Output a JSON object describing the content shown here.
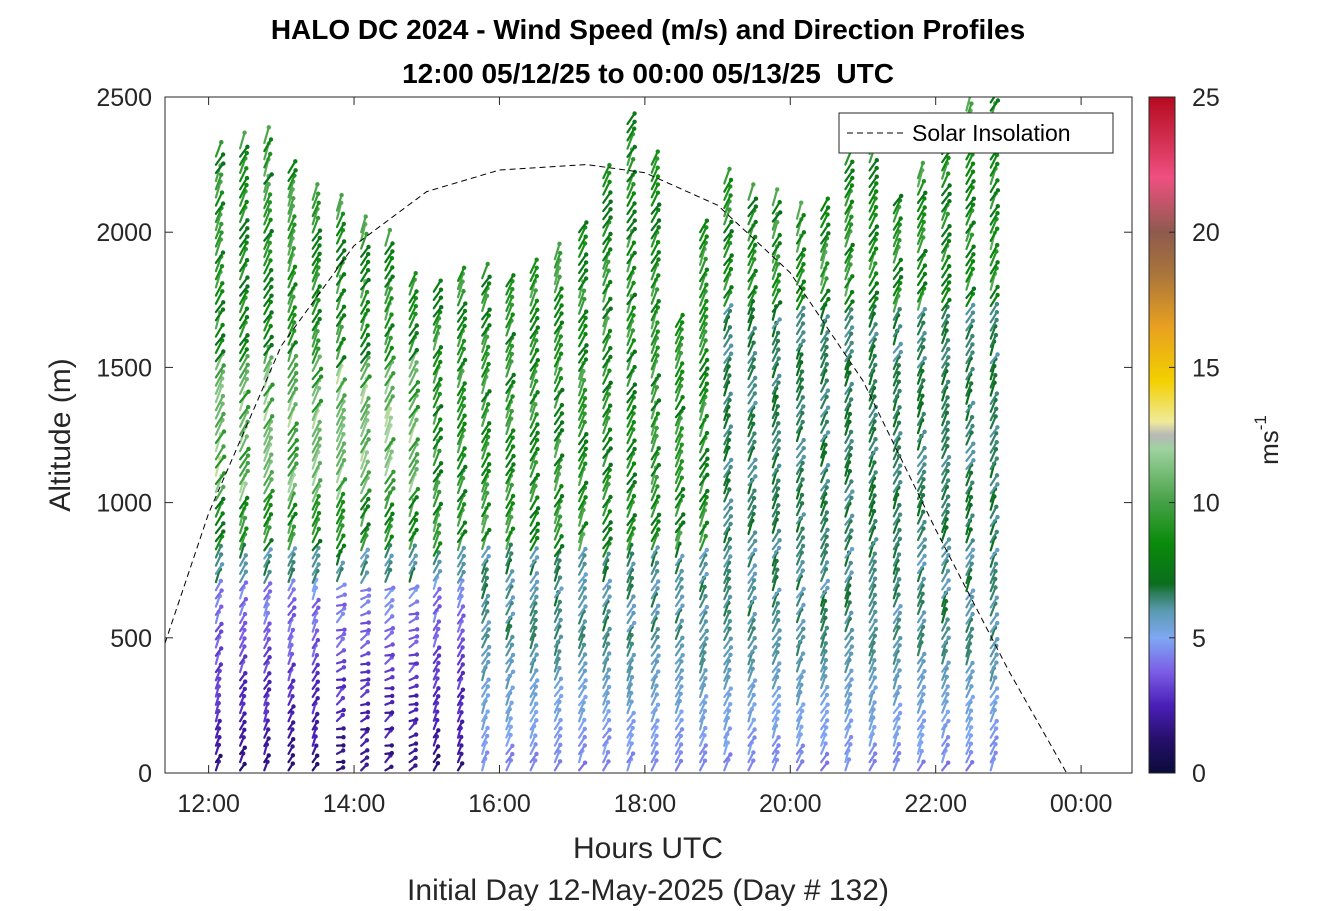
{
  "chart_data": {
    "type": "quiver-profile",
    "title": "HALO DC 2024 - Wind Speed (m/s) and Direction Profiles",
    "subtitle": "12:00 05/12/25 to 00:00 05/13/25  UTC",
    "xlabel": "Hours UTC",
    "ylabel": "Altitude (m)",
    "footer": "Initial Day 12-May-2025 (Day # 132)",
    "xlim_hours": [
      11.4,
      24.7
    ],
    "ylim": [
      0,
      2500
    ],
    "x_tick_hours": [
      12,
      14,
      16,
      18,
      20,
      22,
      24
    ],
    "x_tick_labels": [
      "12:00",
      "14:00",
      "16:00",
      "18:00",
      "20:00",
      "22:00",
      "00:00"
    ],
    "y_ticks": [
      0,
      500,
      1000,
      1500,
      2000,
      2500
    ],
    "y_tick_labels": [
      "0",
      "500",
      "1000",
      "1500",
      "2000",
      "2500"
    ],
    "colorbar": {
      "label": "ms",
      "label_superscript": "-1",
      "range": [
        0,
        25
      ],
      "ticks": [
        "0",
        "5",
        "10",
        "15",
        "20",
        "25"
      ]
    },
    "legend": {
      "entries": [
        "Solar Insolation"
      ],
      "location": "top-right"
    },
    "solar_insolation": {
      "style": "dashed",
      "color": "#000000",
      "peak_hour": 17.2,
      "peak_altitude": 2250,
      "zero_hour": 23.8,
      "points": [
        [
          11.4,
          480
        ],
        [
          12,
          960
        ],
        [
          13,
          1580
        ],
        [
          14,
          1950
        ],
        [
          15,
          2150
        ],
        [
          16,
          2230
        ],
        [
          17.2,
          2250
        ],
        [
          18,
          2220
        ],
        [
          19,
          2100
        ],
        [
          20,
          1850
        ],
        [
          21,
          1450
        ],
        [
          22,
          900
        ],
        [
          23,
          380
        ],
        [
          23.8,
          0
        ],
        [
          24.7,
          0
        ]
      ]
    },
    "profiles": {
      "time_start_hour": 12.1,
      "time_step_hours": 0.333,
      "count": 33,
      "top_altitudes_m": [
        2280,
        2310,
        2330,
        2220,
        2120,
        2080,
        2000,
        1950,
        1800,
        1780,
        1820,
        1830,
        1800,
        1850,
        1900,
        2000,
        2200,
        2400,
        2250,
        1650,
        2000,
        2180,
        2120,
        2100,
        2050,
        2080,
        2250,
        2350,
        2100,
        2200,
        2350,
        2450,
        2480
      ],
      "note": "wind barbs colored by speed (m/s); weak winds (1-4 m/s, purple/blue) below ~700 m 12:00-15:30, 5-9 m/s (green/teal) aloft, westerly to north-westerly flow"
    }
  }
}
